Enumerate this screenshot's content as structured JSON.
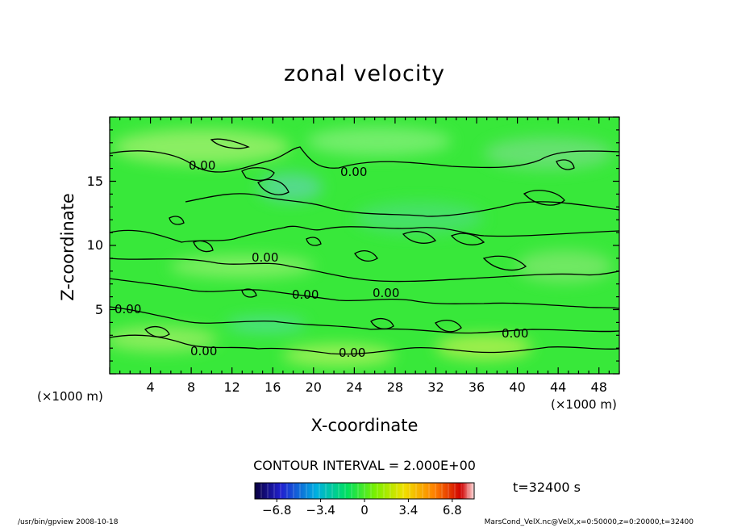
{
  "chart_data": {
    "type": "heatmap",
    "title": "zonal velocity",
    "xlabel": "X-coordinate",
    "ylabel": "Z-coordinate",
    "x_unit": "(×1000 m)",
    "y_unit": "(×1000 m)",
    "xlim": [
      0,
      50
    ],
    "ylim": [
      0,
      20
    ],
    "x_ticks": [
      4,
      8,
      12,
      16,
      20,
      24,
      28,
      32,
      36,
      40,
      44,
      48
    ],
    "y_ticks": [
      5,
      10,
      15
    ],
    "contour_level_label": "0.00",
    "contour_interval_text": "CONTOUR INTERVAL = 2.000E+00",
    "time_text": "t=32400 s",
    "colorbar": {
      "min": -8.5,
      "max": 8.5,
      "ticks": [
        "−6.8",
        "−3.4",
        "0",
        "3.4",
        "6.8"
      ],
      "tick_values": [
        -6.8,
        -3.4,
        0,
        3.4,
        6.8
      ],
      "colors": [
        "#0a0040",
        "#2020d0",
        "#00b0e0",
        "#00e060",
        "#7cf000",
        "#f0e000",
        "#ff8000",
        "#d00000",
        "#ffe0e0"
      ]
    },
    "field_colors": {
      "dominant": "#38e83a",
      "light": "#8cf06a",
      "cyan": "#40e8a0"
    }
  },
  "footer": {
    "left": "/usr/bin/gpview   2008-10-18",
    "right": "MarsCond_VelX.nc@VelX,x=0:50000,z=0:20000,t=32400"
  }
}
